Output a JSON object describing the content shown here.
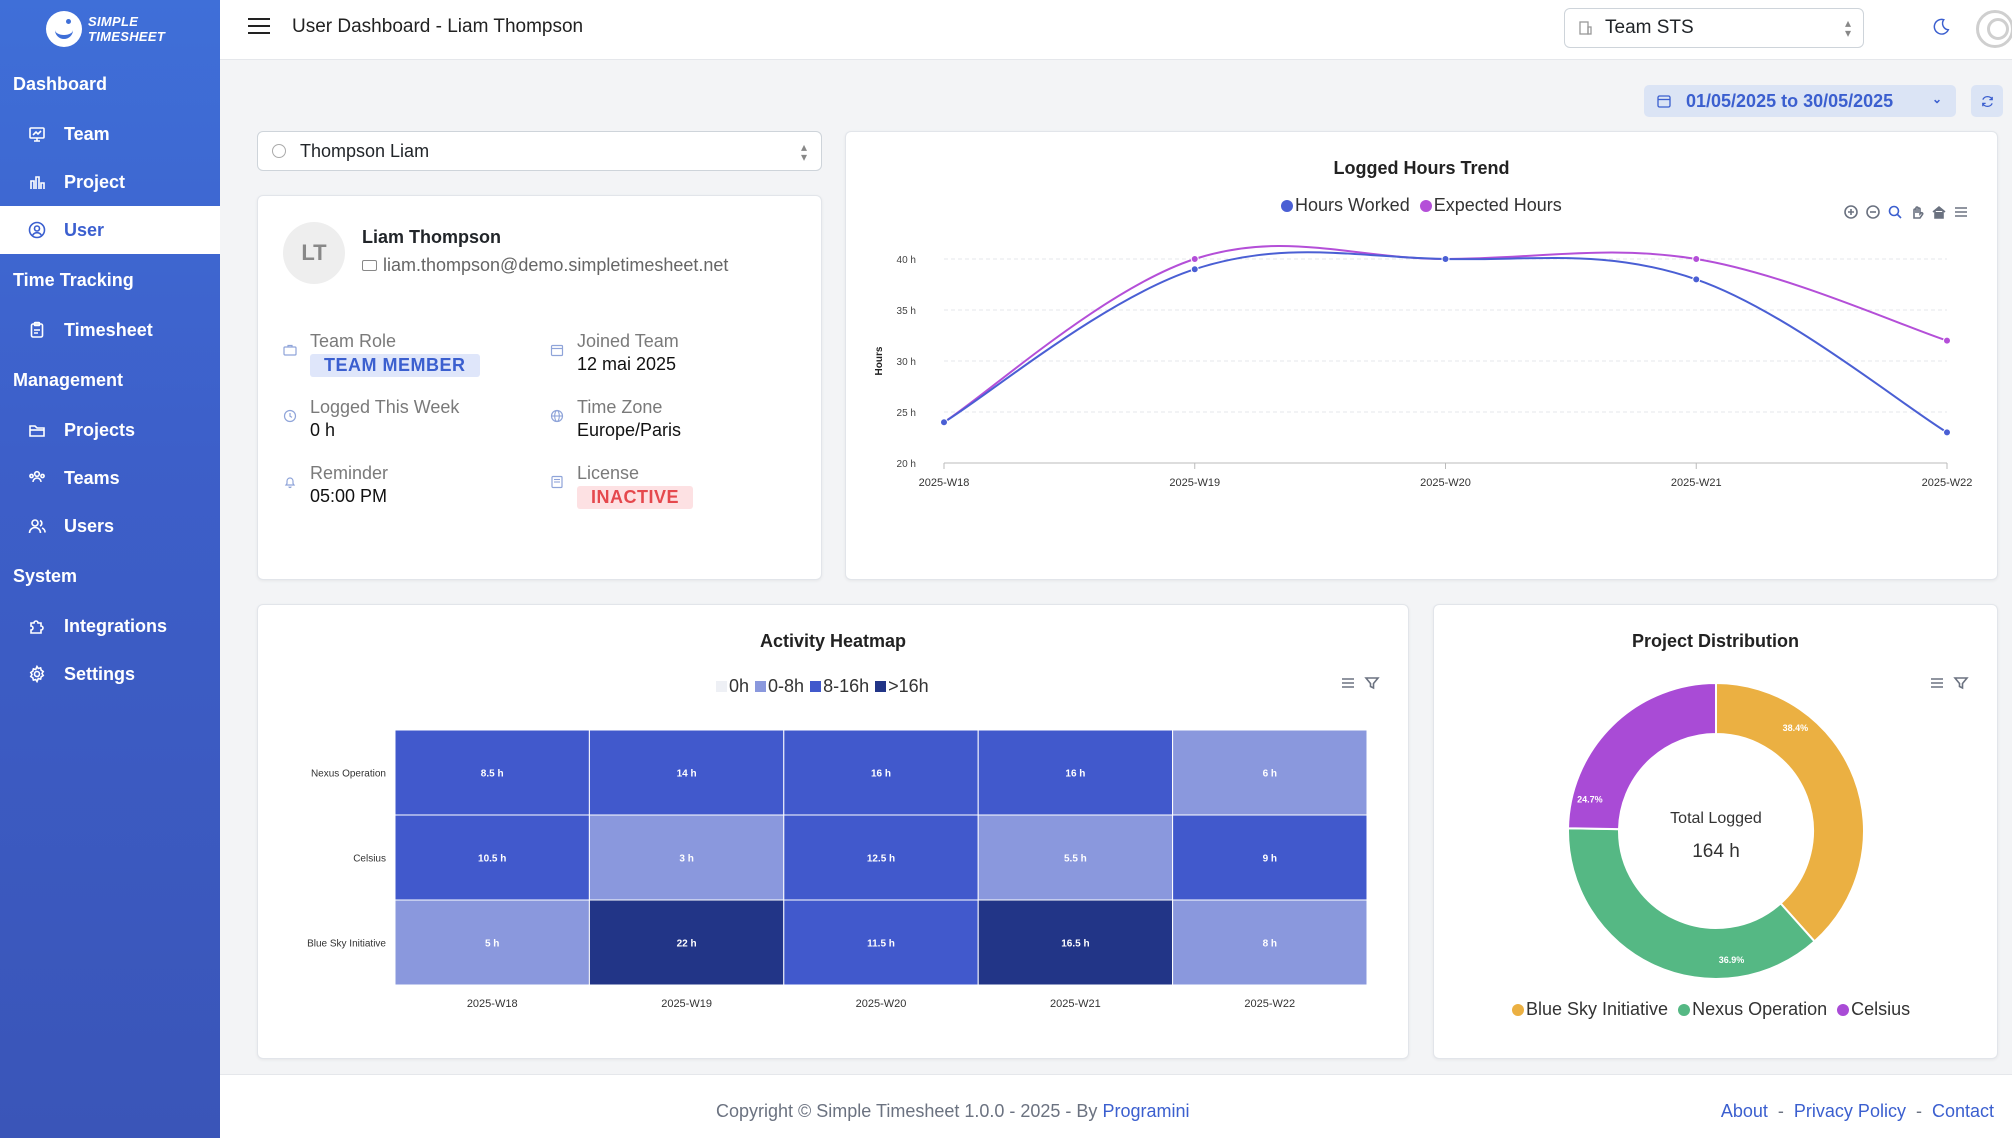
{
  "app": {
    "logo_line1": "SIMPLE",
    "logo_line2": "TIMESHEET",
    "page_title": "User Dashboard - Liam Thompson"
  },
  "sidebar": {
    "sections": [
      {
        "label": "Dashboard",
        "items": [
          {
            "label": "Team",
            "icon": "monitor-icon"
          },
          {
            "label": "Project",
            "icon": "bar-chart-icon"
          },
          {
            "label": "User",
            "icon": "user-circle-icon",
            "active": true
          }
        ]
      },
      {
        "label": "Time Tracking",
        "items": [
          {
            "label": "Timesheet",
            "icon": "clipboard-icon"
          }
        ]
      },
      {
        "label": "Management",
        "items": [
          {
            "label": "Projects",
            "icon": "folder-icon"
          },
          {
            "label": "Teams",
            "icon": "users-icon"
          },
          {
            "label": "Users",
            "icon": "user-group-icon"
          }
        ]
      },
      {
        "label": "System",
        "items": [
          {
            "label": "Integrations",
            "icon": "puzzle-icon"
          },
          {
            "label": "Settings",
            "icon": "gear-icon"
          }
        ]
      }
    ]
  },
  "topbar": {
    "team_select": "Team STS"
  },
  "date_range": "01/05/2025 to 30/05/2025",
  "user_select": "Thompson Liam",
  "profile": {
    "initials": "LT",
    "name": "Liam Thompson",
    "email": "liam.thompson@demo.simpletimesheet.net",
    "team_role_label": "Team Role",
    "team_role": "TEAM MEMBER",
    "joined_label": "Joined Team",
    "joined": "12 mai 2025",
    "logged_label": "Logged This Week",
    "logged": "0 h",
    "timezone_label": "Time Zone",
    "timezone": "Europe/Paris",
    "reminder_label": "Reminder",
    "reminder": "05:00 PM",
    "license_label": "License",
    "license": "INACTIVE"
  },
  "chart_data": [
    {
      "type": "line",
      "title": "Logged Hours Trend",
      "ylabel": "Hours",
      "x": [
        "2025-W18",
        "2025-W19",
        "2025-W20",
        "2025-W21",
        "2025-W22"
      ],
      "yticks": [
        "20 h",
        "25 h",
        "30 h",
        "35 h",
        "40 h"
      ],
      "ylim": [
        20,
        40
      ],
      "series": [
        {
          "name": "Hours Worked",
          "color": "#4a5fd4",
          "values": [
            24,
            39,
            40,
            38,
            23
          ]
        },
        {
          "name": "Expected Hours",
          "color": "#b44fd8",
          "values": [
            24,
            40,
            40,
            40,
            32
          ]
        }
      ]
    },
    {
      "type": "heatmap",
      "title": "Activity Heatmap",
      "legend": [
        {
          "label": "0h",
          "color": "#eef0f5"
        },
        {
          "label": "0-8h",
          "color": "#8a98dd"
        },
        {
          "label": "8-16h",
          "color": "#4159cc"
        },
        {
          "label": ">16h",
          "color": "#223587"
        }
      ],
      "columns": [
        "2025-W18",
        "2025-W19",
        "2025-W20",
        "2025-W21",
        "2025-W22"
      ],
      "rows": [
        "Nexus Operation",
        "Celsius",
        "Blue Sky Initiative"
      ],
      "values": [
        [
          8.5,
          14,
          16,
          16,
          6
        ],
        [
          10.5,
          3,
          12.5,
          5.5,
          9
        ],
        [
          5,
          22,
          11.5,
          16.5,
          8
        ]
      ],
      "labels": [
        [
          "8.5 h",
          "14 h",
          "16 h",
          "16 h",
          "6 h"
        ],
        [
          "10.5 h",
          "3 h",
          "12.5 h",
          "5.5 h",
          "9 h"
        ],
        [
          "5 h",
          "22 h",
          "11.5 h",
          "16.5 h",
          "8 h"
        ]
      ]
    },
    {
      "type": "pie",
      "title": "Project Distribution",
      "center_label": "Total Logged",
      "center_value": "164 h",
      "slices": [
        {
          "name": "Blue Sky Initiative",
          "value": 38.4,
          "label": "38.4%",
          "color": "#ebb042"
        },
        {
          "name": "Nexus Operation",
          "value": 36.9,
          "label": "36.9%",
          "color": "#55b884"
        },
        {
          "name": "Celsius",
          "value": 24.7,
          "label": "24.7%",
          "color": "#a94bd6"
        }
      ]
    }
  ],
  "footer": {
    "copyright": "Copyright © Simple Timesheet 1.0.0 - 2025 - By ",
    "author": "Programini",
    "links": [
      "About",
      "Privacy Policy",
      "Contact"
    ]
  }
}
